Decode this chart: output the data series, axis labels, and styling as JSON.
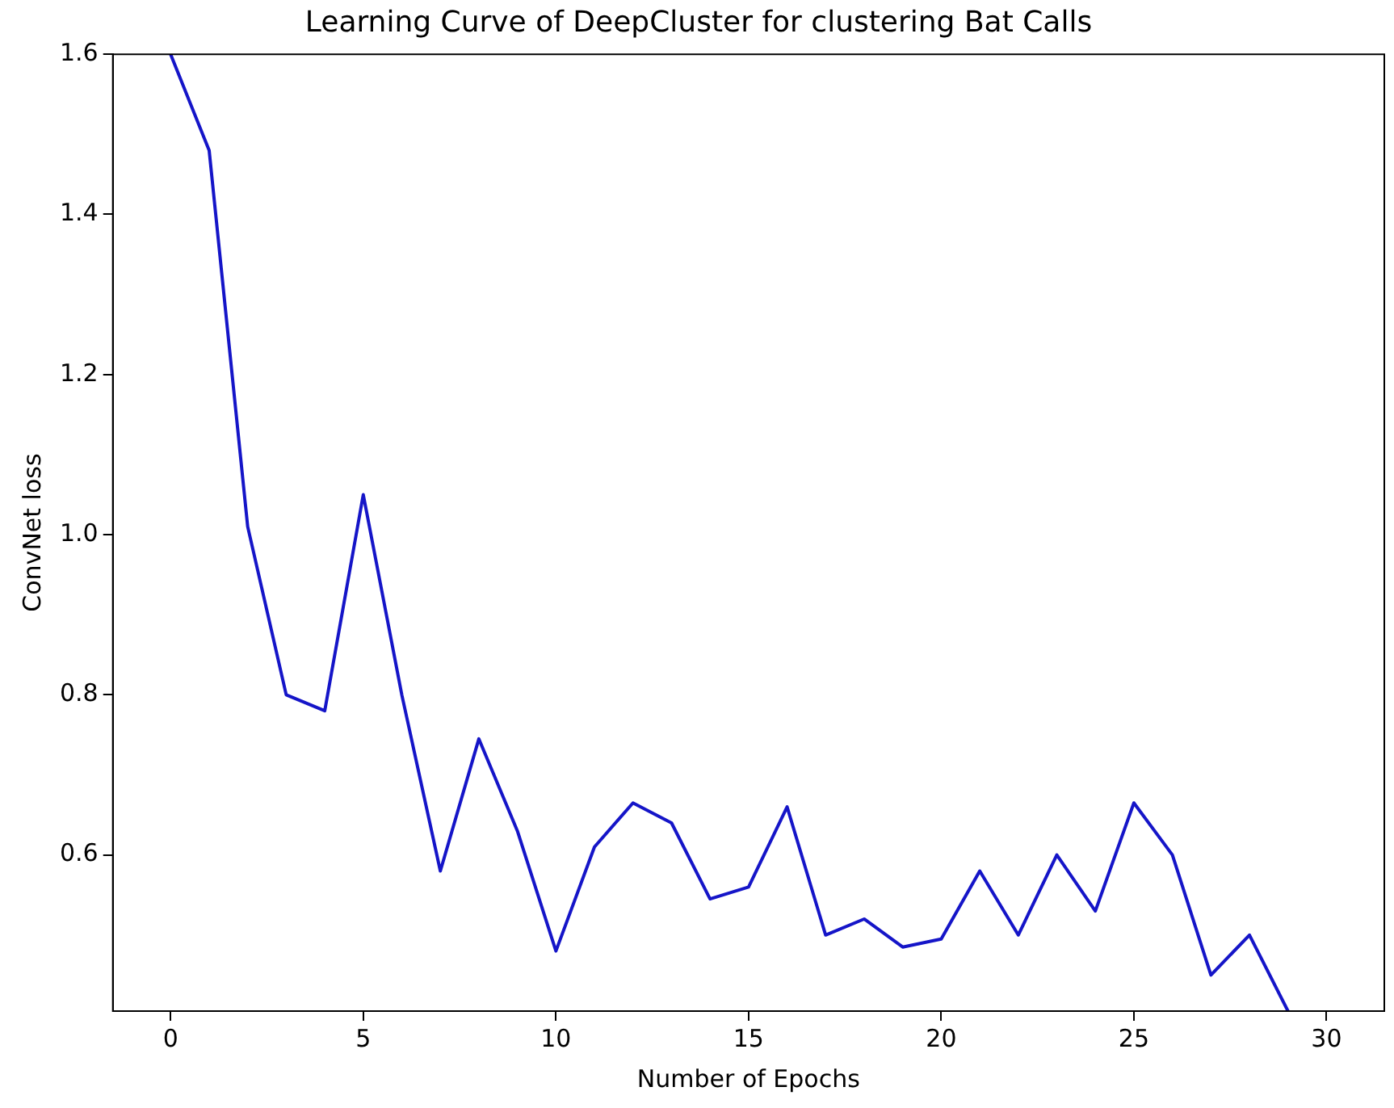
{
  "chart_data": {
    "type": "line",
    "title": "Learning Curve of DeepCluster for clustering Bat Calls",
    "xlabel": "Number of Epochs",
    "ylabel": "ConvNet loss",
    "x": [
      0,
      1,
      2,
      3,
      4,
      5,
      6,
      7,
      8,
      9,
      10,
      11,
      12,
      13,
      14,
      15,
      16,
      17,
      18,
      19,
      20,
      21,
      22,
      23,
      24,
      25,
      26,
      27,
      28,
      29
    ],
    "series": [
      {
        "color": "#1515c8",
        "values": [
          1.6,
          1.48,
          1.01,
          0.8,
          0.78,
          1.05,
          0.8,
          0.58,
          0.745,
          0.63,
          0.48,
          0.61,
          0.665,
          0.64,
          0.545,
          0.56,
          0.66,
          0.5,
          0.52,
          0.485,
          0.495,
          0.58,
          0.5,
          0.6,
          0.53,
          0.665,
          0.6,
          0.45,
          0.5,
          0.405
        ]
      }
    ],
    "xlim": [
      -1.5,
      31.5
    ],
    "ylim": [
      0.405,
      1.6
    ],
    "xticks": [
      0,
      5,
      10,
      15,
      20,
      25,
      30
    ],
    "yticks": [
      0.6,
      0.8,
      {
        "value": 1,
        "label": "1.0"
      },
      1.2,
      1.4,
      1.6
    ],
    "grid": false,
    "legend": false,
    "marker": "none",
    "line_style": "solid"
  }
}
